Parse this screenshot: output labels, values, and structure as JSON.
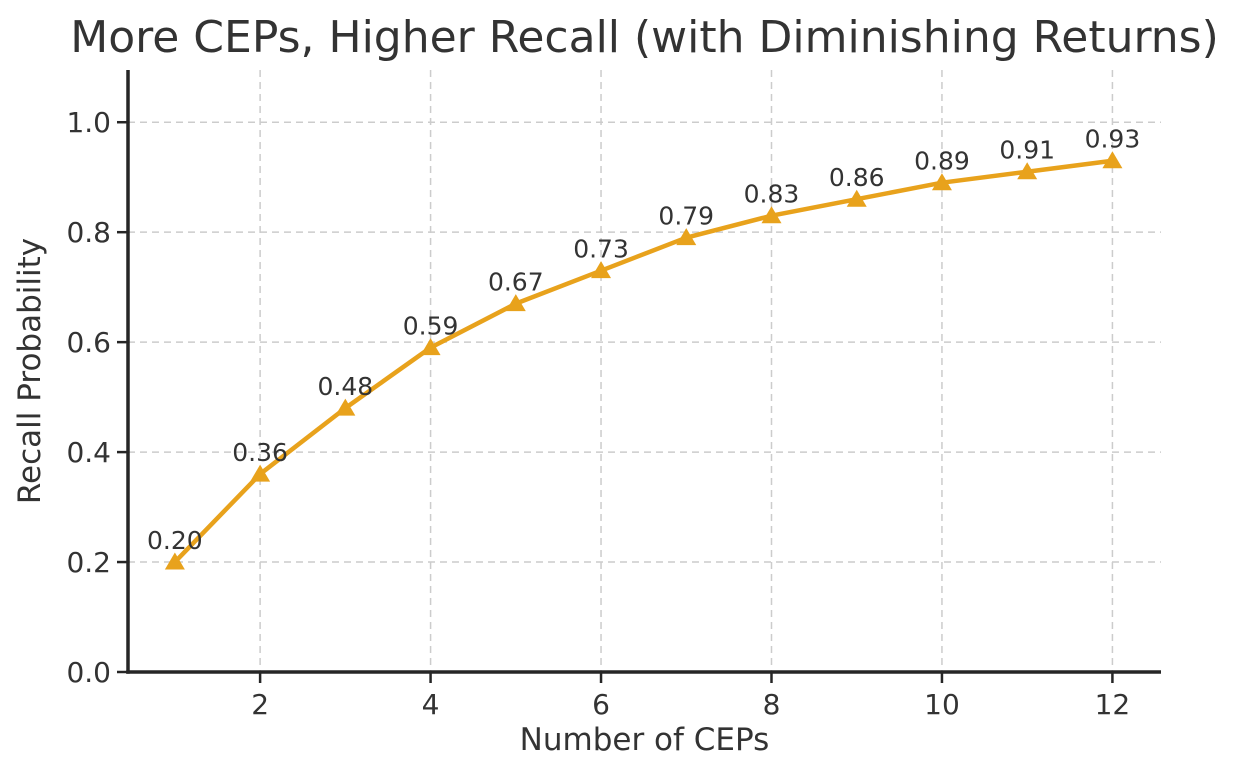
{
  "chart_data": {
    "type": "line",
    "title": "More CEPs, Higher Recall (with Diminishing Returns)",
    "xlabel": "Number of CEPs",
    "ylabel": "Recall Probability",
    "x": [
      1,
      2,
      3,
      4,
      5,
      6,
      7,
      8,
      9,
      10,
      11,
      12
    ],
    "values": [
      0.2,
      0.36,
      0.48,
      0.59,
      0.67,
      0.73,
      0.79,
      0.83,
      0.86,
      0.89,
      0.91,
      0.93
    ],
    "point_labels": [
      "0.20",
      "0.36",
      "0.48",
      "0.59",
      "0.67",
      "0.73",
      "0.79",
      "0.83",
      "0.86",
      "0.89",
      "0.91",
      "0.93"
    ],
    "xticks": [
      2,
      4,
      6,
      8,
      10,
      12
    ],
    "xtick_labels": [
      "2",
      "4",
      "6",
      "8",
      "10",
      "12"
    ],
    "yticks": [
      0.0,
      0.2,
      0.4,
      0.6,
      0.8,
      1.0
    ],
    "ytick_labels": [
      "0.0",
      "0.2",
      "0.4",
      "0.6",
      "0.8",
      "1.0"
    ],
    "xlim": [
      0.45,
      12.57
    ],
    "ylim": [
      0,
      1.095
    ],
    "grid": true,
    "grid_style": "dashed",
    "legend": "none",
    "marker": "triangle-up",
    "colors": {
      "line": "#E8A21C",
      "marker": "#E8A21C",
      "grid": "#cccccc",
      "axis": "#262626",
      "text": "#333333",
      "background": "#ffffff"
    }
  }
}
